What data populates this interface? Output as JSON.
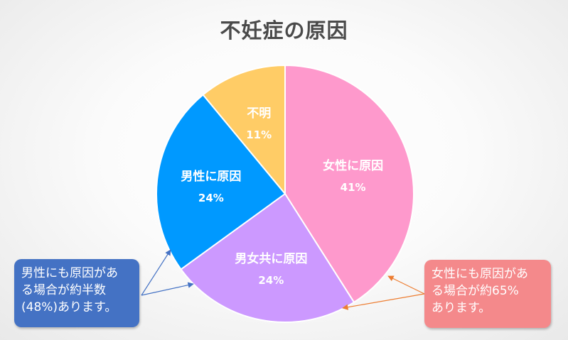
{
  "title": "不妊症の原因",
  "chart_data": {
    "type": "pie",
    "title": "不妊症の原因",
    "slices": [
      {
        "label": "女性に原因",
        "value": 41,
        "percent_label": "41%",
        "color": "#fe99cc"
      },
      {
        "label": "男女共に原因",
        "value": 24,
        "percent_label": "24%",
        "color": "#cc99ff"
      },
      {
        "label": "男性に原因",
        "value": 24,
        "percent_label": "24%",
        "color": "#0099ff"
      },
      {
        "label": "不明",
        "value": 11,
        "percent_label": "11%",
        "color": "#ffcc66"
      }
    ],
    "start": "12 o'clock",
    "direction": "clockwise"
  },
  "callouts": {
    "left": {
      "lines": [
        "男性にも原因があ",
        "る場合が約半数",
        "(48%)あります。"
      ],
      "color": "#4472c4"
    },
    "right": {
      "lines": [
        "女性にも原因があ",
        "る場合が約65%",
        "あります。"
      ],
      "color": "#f4898b"
    }
  }
}
